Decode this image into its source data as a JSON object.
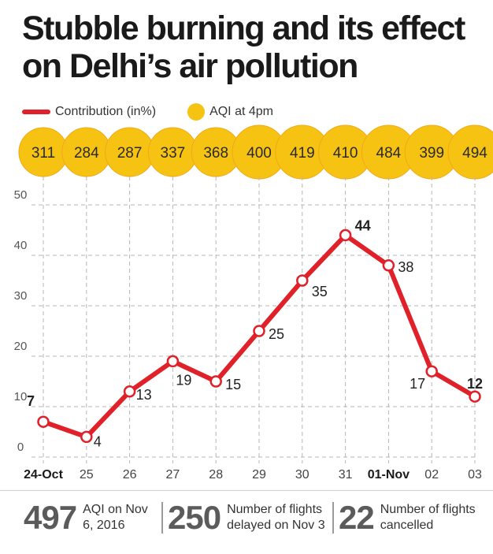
{
  "title": "Stubble burning and its effect on Delhi’s air pollution",
  "legend": {
    "line_label": "Contribution (in%)",
    "dot_label": "AQI at 4pm"
  },
  "colors": {
    "line": "#e0212a",
    "aqi": "#f6c313",
    "aqi_edge": "#f0a818"
  },
  "chart_data": {
    "type": "line",
    "title": "Stubble burning and its effect on Delhi’s air pollution",
    "xlabel": "",
    "ylabel": "",
    "categories": [
      "24-Oct",
      "25",
      "26",
      "27",
      "28",
      "29",
      "30",
      "31",
      "01-Nov",
      "02",
      "03"
    ],
    "bold_categories": [
      "24-Oct",
      "01-Nov"
    ],
    "ylim": [
      0,
      50
    ],
    "yticks": [
      0,
      10,
      20,
      30,
      40,
      50
    ],
    "grid": true,
    "legend_position": "top-left",
    "series": [
      {
        "name": "Contribution (in%)",
        "values": [
          7,
          4,
          13,
          19,
          15,
          25,
          35,
          44,
          38,
          17,
          12
        ]
      },
      {
        "name": "AQI at 4pm",
        "values": [
          311,
          284,
          287,
          337,
          368,
          400,
          419,
          410,
          484,
          399,
          494
        ]
      }
    ],
    "bold_labels": [
      7,
      44,
      12
    ]
  },
  "stats": [
    {
      "value": "497",
      "text": "AQI on Nov 6, 2016"
    },
    {
      "value": "250",
      "text": "Number of flights delayed on Nov 3"
    },
    {
      "value": "22",
      "text": "Number of flights cancelled"
    }
  ]
}
